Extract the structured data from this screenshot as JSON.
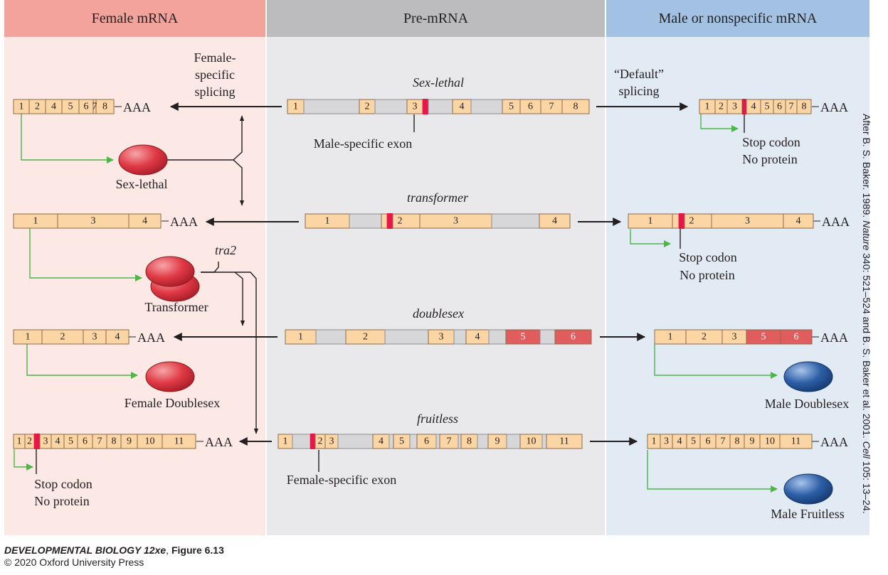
{
  "headers": {
    "female": "Female mRNA",
    "pre": "Pre-mRNA",
    "male": "Male or nonspecific mRNA"
  },
  "labels": {
    "female_specific_splicing": [
      "Female-",
      "specific",
      "splicing"
    ],
    "default_splicing": [
      "“Default”",
      "splicing"
    ],
    "male_specific_exon": "Male-specific exon",
    "female_specific_exon": "Female-specific exon",
    "stop_codon": "Stop codon",
    "no_protein": "No protein",
    "aaa": "AAA",
    "tra2": "tra2"
  },
  "genes": {
    "sex_lethal": {
      "name": "Sex-lethal",
      "pre_exons": [
        "1",
        "2",
        "3",
        "4",
        "5",
        "6",
        "7",
        "8"
      ],
      "female_exons": [
        "1",
        "2",
        "4",
        "5",
        "6",
        "7",
        "8"
      ],
      "male_exons": [
        "1",
        "2",
        "3",
        "4",
        "5",
        "6",
        "7",
        "8"
      ],
      "protein": "Sex-lethal"
    },
    "transformer": {
      "name": "transformer",
      "pre_exons": [
        "1",
        "2",
        "3",
        "4"
      ],
      "female_exons": [
        "1",
        "3",
        "4"
      ],
      "male_exons": [
        "1",
        "2",
        "3",
        "4"
      ],
      "protein": "Transformer"
    },
    "doublesex": {
      "name": "doublesex",
      "pre_exons": [
        "1",
        "2",
        "3",
        "4",
        "5",
        "6"
      ],
      "female_exons": [
        "1",
        "2",
        "3",
        "4"
      ],
      "male_exons": [
        "1",
        "2",
        "3",
        "5",
        "6"
      ],
      "female_protein": "Female Doublesex",
      "male_protein": "Male Doublesex"
    },
    "fruitless": {
      "name": "fruitless",
      "pre_exons": [
        "1",
        "2",
        "3",
        "4",
        "5",
        "6",
        "7",
        "8",
        "9",
        "10",
        "11"
      ],
      "female_exons": [
        "1",
        "2",
        "3",
        "4",
        "5",
        "6",
        "7",
        "8",
        "9",
        "10",
        "11"
      ],
      "male_exons": [
        "1",
        "3",
        "4",
        "5",
        "6",
        "7",
        "8",
        "9",
        "10",
        "11"
      ],
      "male_protein": "Male Fruitless"
    }
  },
  "caption": {
    "title": "DEVELOPMENTAL BIOLOGY 12xe",
    "figure": "Figure 6.13",
    "copyright": "© 2020 Oxford University Press"
  },
  "credit_parts": [
    "After B. S. Baker. 1989. ",
    "Nature",
    " 340: 521–524 and B. S. Baker et al. 2001. ",
    "Cell",
    " 105: 13–24."
  ],
  "colors": {
    "female_bg": "#fce8e4",
    "female_header": "#f2a49c",
    "pre_bg": "#e9e9ec",
    "pre_header": "#bcbcbe",
    "male_bg": "#e2eaf4",
    "male_header": "#a3c2e3",
    "exon": "#fcd5a4",
    "intron": "#d7d7d9",
    "stop": "#e8174b",
    "male_exon": "#e05c5d",
    "arrow_green": "#4cb648",
    "protein_red": "#e03a45",
    "protein_blue": "#2d5fa6"
  }
}
